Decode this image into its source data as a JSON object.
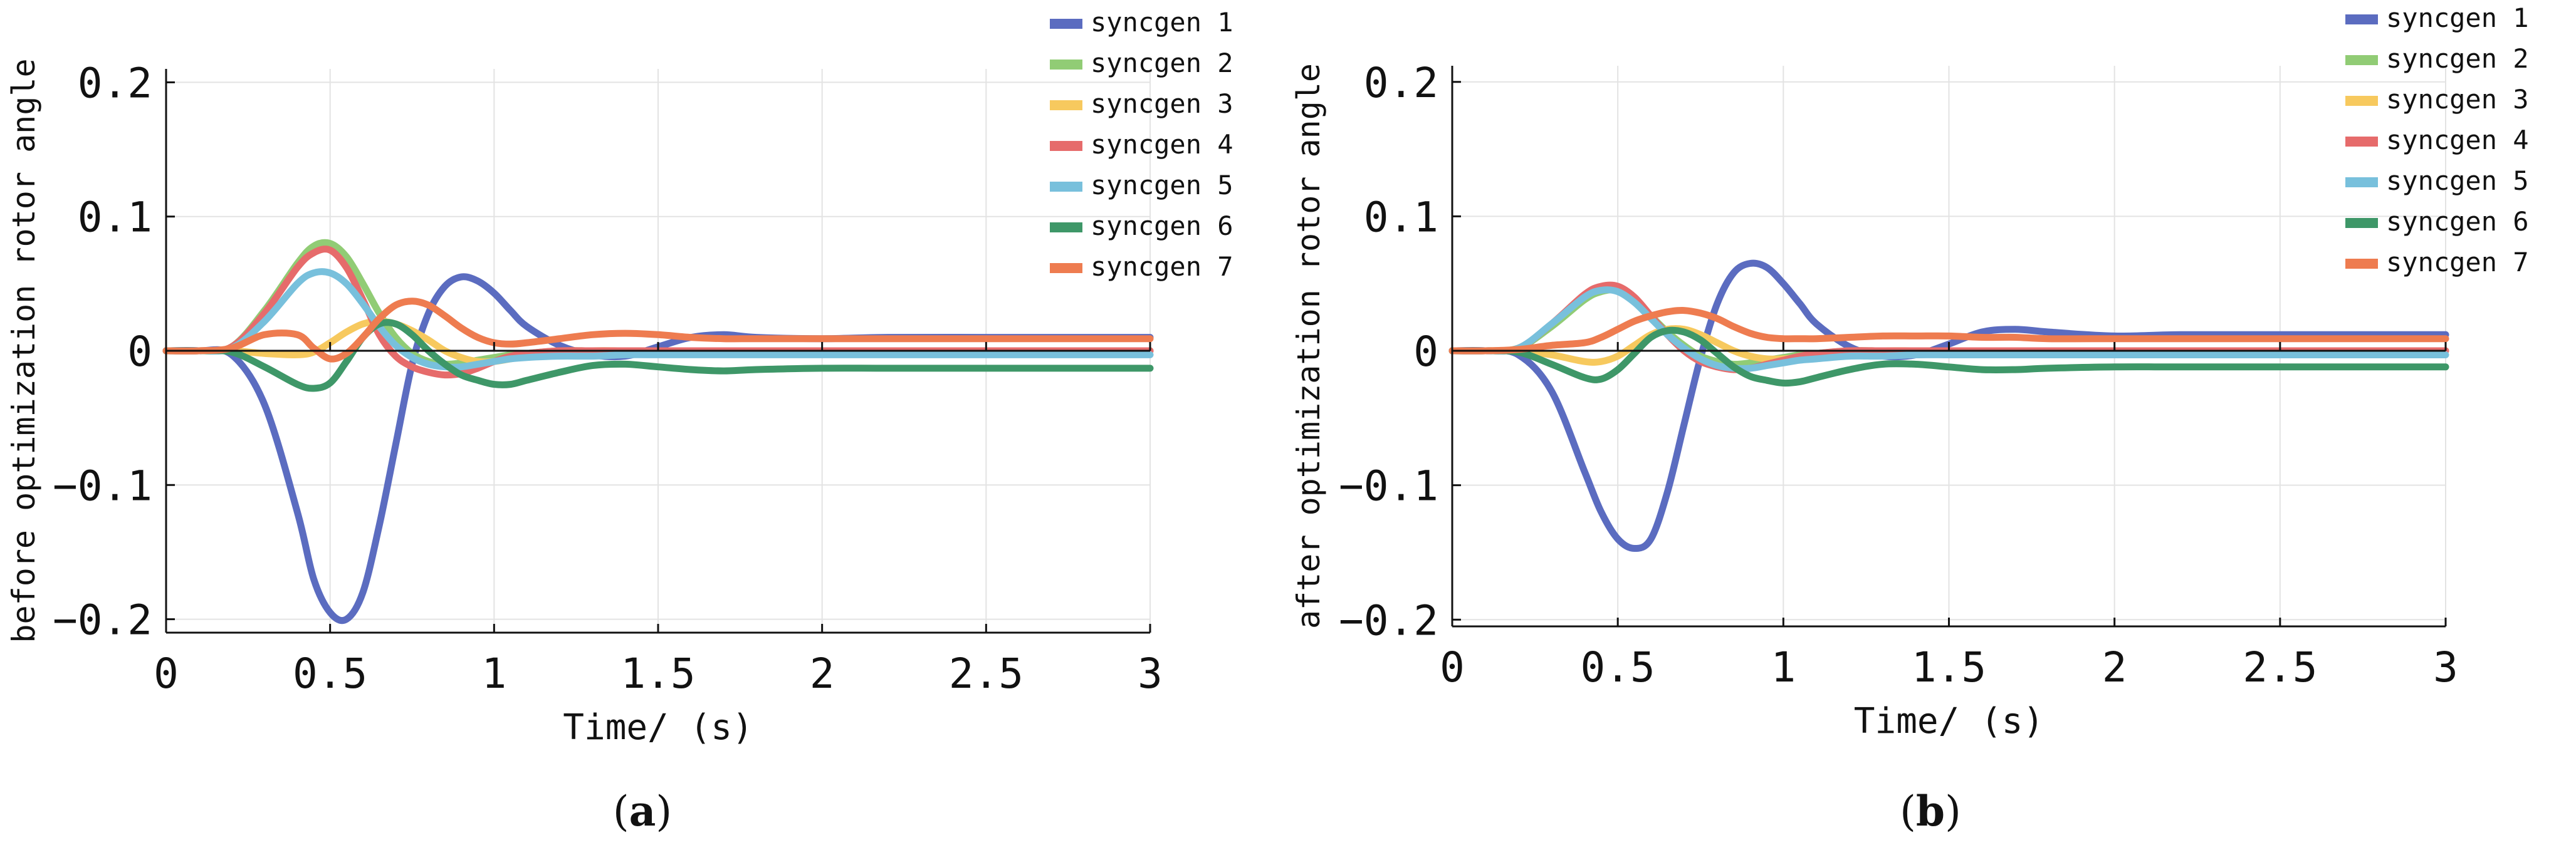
{
  "chart_data": [
    {
      "type": "line",
      "caption": "(a)",
      "caption_letter": "a",
      "xlabel": "Time/ (s)",
      "ylabel": "before optimization rotor angle",
      "xlim": [
        0,
        3
      ],
      "ylim": [
        -0.21,
        0.21
      ],
      "xticks": [
        0,
        0.5,
        1,
        1.5,
        2,
        2.5,
        3
      ],
      "xtick_labels": [
        "0",
        "0.5",
        "1",
        "1.5",
        "2",
        "2.5",
        "3"
      ],
      "yticks": [
        -0.2,
        -0.1,
        0,
        0.1,
        0.2
      ],
      "ytick_labels": [
        "−0.2",
        "−0.1",
        "0",
        "0.1",
        "0.2"
      ],
      "grid": true,
      "legend_position": "top-right",
      "x": [
        0,
        0.1,
        0.2,
        0.3,
        0.4,
        0.45,
        0.5,
        0.55,
        0.6,
        0.65,
        0.7,
        0.75,
        0.8,
        0.85,
        0.9,
        0.95,
        1.0,
        1.05,
        1.1,
        1.2,
        1.3,
        1.4,
        1.5,
        1.6,
        1.7,
        1.8,
        2.0,
        2.2,
        2.5,
        2.8,
        3.0
      ],
      "series": [
        {
          "name": "syncgen 1",
          "color": "#5B6CC0",
          "values": [
            0,
            0,
            -0.003,
            -0.04,
            -0.12,
            -0.17,
            -0.195,
            -0.2,
            -0.18,
            -0.13,
            -0.07,
            -0.01,
            0.028,
            0.048,
            0.055,
            0.052,
            0.043,
            0.03,
            0.018,
            0.004,
            -0.003,
            -0.004,
            0.003,
            0.01,
            0.012,
            0.01,
            0.009,
            0.01,
            0.01,
            0.01,
            0.01
          ]
        },
        {
          "name": "syncgen 2",
          "color": "#91CC75",
          "values": [
            0,
            0,
            0.003,
            0.03,
            0.065,
            0.078,
            0.08,
            0.07,
            0.05,
            0.028,
            0.01,
            -0.002,
            -0.008,
            -0.01,
            -0.009,
            -0.007,
            -0.005,
            -0.003,
            -0.002,
            0,
            0,
            0,
            0,
            0,
            0,
            0,
            0,
            0,
            0,
            0,
            0
          ]
        },
        {
          "name": "syncgen 3",
          "color": "#F7C95E",
          "values": [
            0,
            0,
            0,
            -0.002,
            -0.003,
            -0.001,
            0.006,
            0.014,
            0.02,
            0.022,
            0.02,
            0.015,
            0.008,
            0,
            -0.005,
            -0.008,
            -0.008,
            -0.006,
            -0.004,
            -0.002,
            0,
            0,
            0,
            0,
            0,
            0,
            0,
            0,
            0,
            0,
            0
          ]
        },
        {
          "name": "syncgen 4",
          "color": "#E66B6B",
          "values": [
            0,
            0,
            0.003,
            0.028,
            0.062,
            0.073,
            0.075,
            0.062,
            0.038,
            0.012,
            -0.004,
            -0.012,
            -0.016,
            -0.018,
            -0.017,
            -0.013,
            -0.008,
            -0.004,
            -0.002,
            0,
            0,
            0,
            0,
            0,
            0,
            0,
            0,
            0,
            0,
            0,
            0
          ]
        },
        {
          "name": "syncgen 5",
          "color": "#78C0DC",
          "values": [
            0,
            0,
            0.002,
            0.022,
            0.05,
            0.058,
            0.058,
            0.05,
            0.035,
            0.018,
            0.004,
            -0.005,
            -0.01,
            -0.012,
            -0.012,
            -0.01,
            -0.008,
            -0.006,
            -0.005,
            -0.004,
            -0.004,
            -0.003,
            -0.003,
            -0.003,
            -0.003,
            -0.003,
            -0.003,
            -0.003,
            -0.003,
            -0.003,
            -0.003
          ]
        },
        {
          "name": "syncgen 6",
          "color": "#3E9768",
          "values": [
            0,
            0,
            -0.001,
            -0.012,
            -0.025,
            -0.028,
            -0.024,
            -0.008,
            0.01,
            0.02,
            0.02,
            0.012,
            0,
            -0.01,
            -0.018,
            -0.022,
            -0.025,
            -0.025,
            -0.022,
            -0.016,
            -0.011,
            -0.01,
            -0.012,
            -0.014,
            -0.015,
            -0.014,
            -0.013,
            -0.013,
            -0.013,
            -0.013,
            -0.013
          ]
        },
        {
          "name": "syncgen 7",
          "color": "#EE7C50",
          "values": [
            0,
            0,
            0.002,
            0.012,
            0.012,
            0.002,
            -0.006,
            -0.002,
            0.01,
            0.024,
            0.034,
            0.037,
            0.034,
            0.026,
            0.017,
            0.01,
            0.006,
            0.005,
            0.006,
            0.009,
            0.012,
            0.013,
            0.012,
            0.01,
            0.009,
            0.009,
            0.009,
            0.009,
            0.009,
            0.009,
            0.009
          ]
        }
      ]
    },
    {
      "type": "line",
      "caption": "(b)",
      "caption_letter": "b",
      "xlabel": "Time/ (s)",
      "ylabel": "after optimization rotor angle",
      "xlim": [
        0,
        3
      ],
      "ylim": [
        -0.205,
        0.212
      ],
      "xticks": [
        0,
        0.5,
        1,
        1.5,
        2,
        2.5,
        3
      ],
      "xtick_labels": [
        "0",
        "0.5",
        "1",
        "1.5",
        "2",
        "2.5",
        "3"
      ],
      "yticks": [
        -0.2,
        -0.1,
        0,
        0.1,
        0.2
      ],
      "ytick_labels": [
        "−0.2",
        "−0.1",
        "0",
        "0.1",
        "0.2"
      ],
      "grid": true,
      "legend_position": "top-right",
      "x": [
        0,
        0.1,
        0.2,
        0.3,
        0.4,
        0.45,
        0.5,
        0.55,
        0.6,
        0.65,
        0.7,
        0.75,
        0.8,
        0.85,
        0.9,
        0.95,
        1.0,
        1.05,
        1.1,
        1.2,
        1.3,
        1.4,
        1.5,
        1.6,
        1.7,
        1.8,
        2.0,
        2.2,
        2.5,
        2.8,
        3.0
      ],
      "series": [
        {
          "name": "syncgen 1",
          "color": "#5B6CC0",
          "values": [
            0,
            0,
            -0.003,
            -0.03,
            -0.09,
            -0.12,
            -0.14,
            -0.147,
            -0.14,
            -0.105,
            -0.055,
            -0.005,
            0.035,
            0.058,
            0.065,
            0.062,
            0.05,
            0.035,
            0.02,
            0.003,
            -0.004,
            -0.003,
            0.005,
            0.014,
            0.016,
            0.014,
            0.011,
            0.012,
            0.012,
            0.012,
            0.012
          ]
        },
        {
          "name": "syncgen 2",
          "color": "#91CC75",
          "values": [
            0,
            0,
            0.002,
            0.018,
            0.038,
            0.044,
            0.045,
            0.038,
            0.026,
            0.014,
            0.004,
            -0.004,
            -0.008,
            -0.01,
            -0.009,
            -0.007,
            -0.005,
            -0.003,
            -0.002,
            0,
            0,
            0,
            0,
            0,
            0,
            0,
            0,
            0,
            0,
            0,
            0
          ]
        },
        {
          "name": "syncgen 3",
          "color": "#F7C95E",
          "values": [
            0,
            0,
            0,
            -0.003,
            -0.008,
            -0.008,
            -0.004,
            0.004,
            0.012,
            0.016,
            0.016,
            0.012,
            0.006,
            0,
            -0.004,
            -0.006,
            -0.006,
            -0.005,
            -0.003,
            -0.001,
            0,
            0,
            0,
            0,
            0,
            0,
            0,
            0,
            0,
            0,
            0
          ]
        },
        {
          "name": "syncgen 4",
          "color": "#E66B6B",
          "values": [
            0,
            0,
            0.002,
            0.02,
            0.042,
            0.048,
            0.048,
            0.04,
            0.026,
            0.012,
            0,
            -0.008,
            -0.012,
            -0.014,
            -0.013,
            -0.01,
            -0.007,
            -0.004,
            -0.002,
            0,
            0,
            0,
            0,
            0,
            0,
            0,
            0,
            0,
            0,
            0,
            0
          ]
        },
        {
          "name": "syncgen 5",
          "color": "#78C0DC",
          "values": [
            0,
            0,
            0.002,
            0.02,
            0.04,
            0.045,
            0.044,
            0.036,
            0.024,
            0.012,
            0.002,
            -0.006,
            -0.011,
            -0.013,
            -0.013,
            -0.011,
            -0.009,
            -0.007,
            -0.006,
            -0.004,
            -0.004,
            -0.003,
            -0.003,
            -0.003,
            -0.003,
            -0.003,
            -0.003,
            -0.003,
            -0.003,
            -0.003,
            -0.003
          ]
        },
        {
          "name": "syncgen 6",
          "color": "#3E9768",
          "values": [
            0,
            0,
            -0.001,
            -0.01,
            -0.02,
            -0.021,
            -0.014,
            -0.002,
            0.01,
            0.015,
            0.014,
            0.008,
            -0.002,
            -0.012,
            -0.019,
            -0.022,
            -0.024,
            -0.023,
            -0.02,
            -0.014,
            -0.01,
            -0.01,
            -0.012,
            -0.014,
            -0.014,
            -0.013,
            -0.012,
            -0.012,
            -0.012,
            -0.012,
            -0.012
          ]
        },
        {
          "name": "syncgen 7",
          "color": "#EE7C50",
          "values": [
            0,
            0,
            0.001,
            0.004,
            0.006,
            0.01,
            0.016,
            0.022,
            0.026,
            0.029,
            0.03,
            0.028,
            0.024,
            0.018,
            0.013,
            0.01,
            0.009,
            0.009,
            0.009,
            0.01,
            0.011,
            0.011,
            0.011,
            0.01,
            0.01,
            0.009,
            0.009,
            0.009,
            0.009,
            0.009,
            0.009
          ]
        }
      ]
    }
  ]
}
